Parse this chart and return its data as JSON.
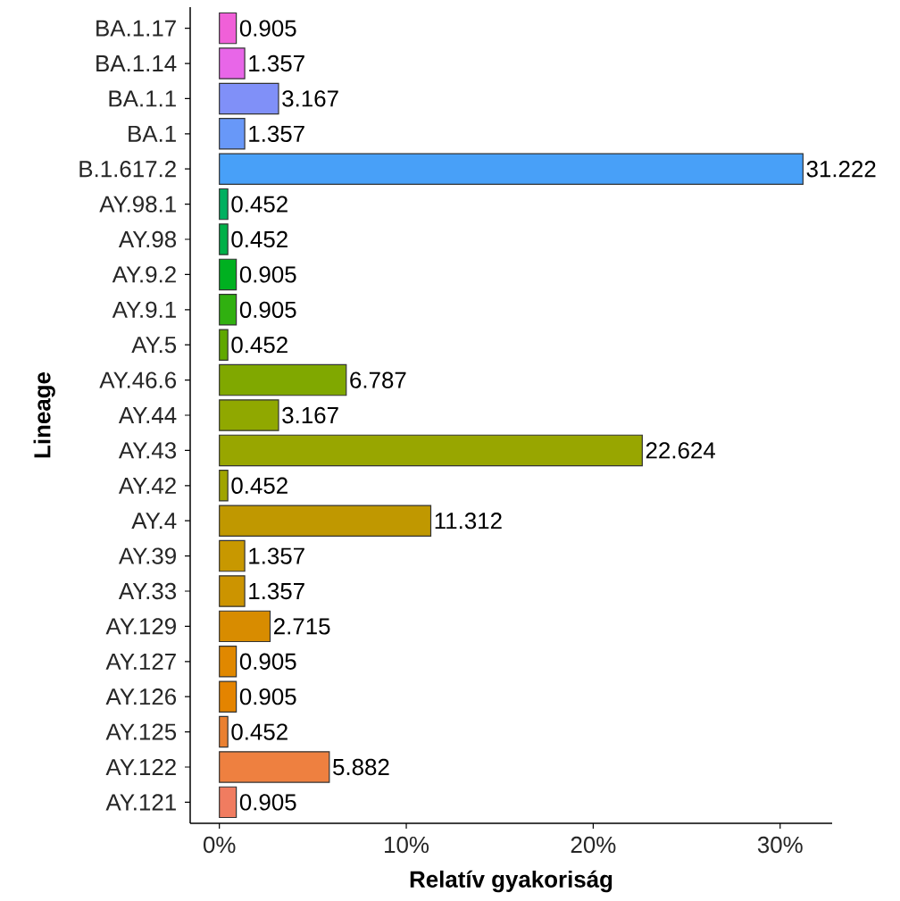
{
  "chart_data": {
    "type": "bar",
    "orientation": "horizontal",
    "xlabel": "Relatív gyakoriság",
    "ylabel": "Lineage",
    "categories": [
      "BA.1.17",
      "BA.1.14",
      "BA.1.1",
      "BA.1",
      "B.1.617.2",
      "AY.98.1",
      "AY.98",
      "AY.9.2",
      "AY.9.1",
      "AY.5",
      "AY.46.6",
      "AY.44",
      "AY.43",
      "AY.42",
      "AY.4",
      "AY.39",
      "AY.33",
      "AY.129",
      "AY.127",
      "AY.126",
      "AY.125",
      "AY.122",
      "AY.121"
    ],
    "values": [
      0.905,
      1.357,
      3.167,
      1.357,
      31.222,
      0.452,
      0.452,
      0.905,
      0.905,
      0.452,
      6.787,
      3.167,
      22.624,
      0.452,
      11.312,
      1.357,
      1.357,
      2.715,
      0.905,
      0.905,
      0.452,
      5.882,
      0.905
    ],
    "colors": [
      "#f060d8",
      "#e866e8",
      "#8090f8",
      "#6898f8",
      "#48a0f8",
      "#00b060",
      "#00b048",
      "#00b020",
      "#30b010",
      "#60a800",
      "#80a800",
      "#90a800",
      "#98a600",
      "#a0a400",
      "#c09800",
      "#c89800",
      "#cc9400",
      "#d88c00",
      "#e08800",
      "#e48400",
      "#ea8030",
      "#ee8040",
      "#f07c60"
    ],
    "data_labels": true,
    "xlim": [
      -1.561,
      32.783
    ],
    "xticks": [
      {
        "value": 0,
        "label": "0%"
      },
      {
        "value": 10,
        "label": "10%"
      },
      {
        "value": 20,
        "label": "20%"
      },
      {
        "value": 30,
        "label": "30%"
      }
    ]
  }
}
